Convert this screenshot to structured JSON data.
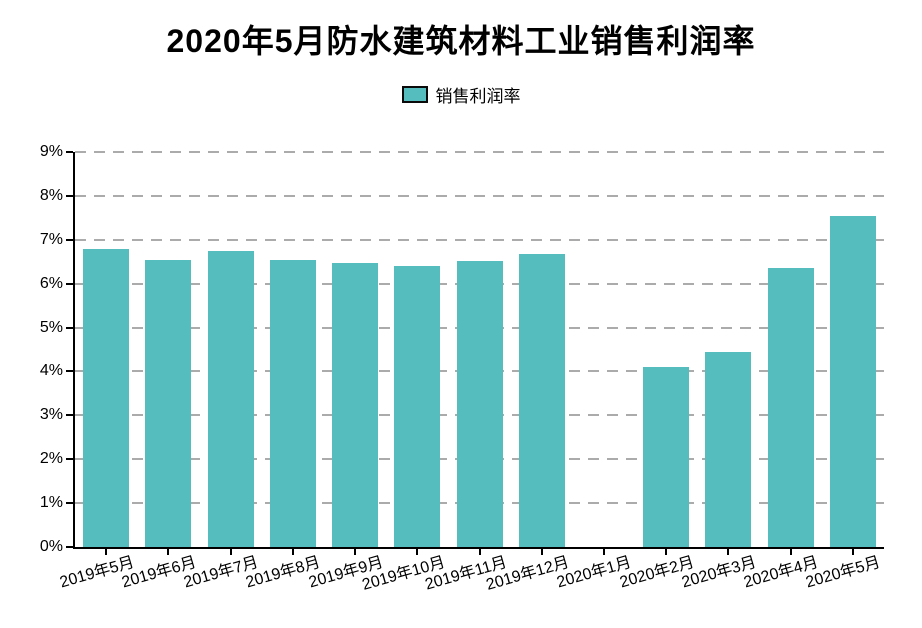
{
  "title": "2020年5月防水建筑材料工业销售利润率",
  "legend": {
    "label": "销售利润率"
  },
  "chart_data": {
    "type": "bar",
    "title": "2020年5月防水建筑材料工业销售利润率",
    "categories": [
      "2019年5月",
      "2019年6月",
      "2019年7月",
      "2019年8月",
      "2019年9月",
      "2019年10月",
      "2019年11月",
      "2019年12月",
      "2020年1月",
      "2020年2月",
      "2020年3月",
      "2020年4月",
      "2020年5月"
    ],
    "series": [
      {
        "name": "销售利润率",
        "values": [
          6.8,
          6.55,
          6.75,
          6.55,
          6.48,
          6.4,
          6.52,
          6.68,
          null,
          4.1,
          4.45,
          6.35,
          7.55
        ]
      }
    ],
    "unit": "%",
    "xlabel": "",
    "ylabel": "",
    "ylim": [
      0,
      9
    ],
    "ytick_labels": [
      "0%",
      "1%",
      "2%",
      "3%",
      "4%",
      "5%",
      "6%",
      "7%",
      "8%",
      "9%"
    ],
    "grid": "horizontal-dashed",
    "gridline_color": "#ababab",
    "axis_color": "#000000",
    "legend_position": "top-center",
    "bar_color": "#56BDBE"
  }
}
